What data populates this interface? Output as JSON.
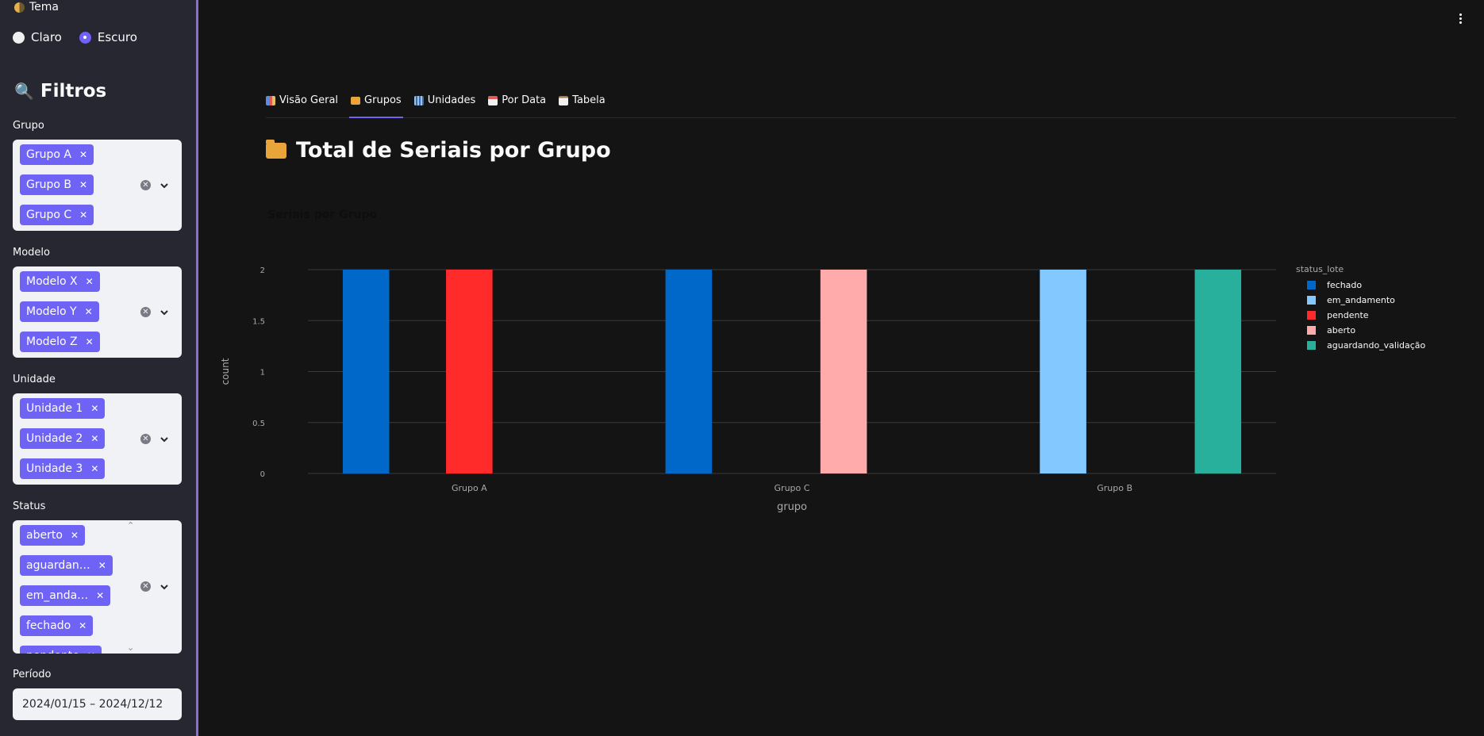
{
  "sidebar": {
    "theme_label": "Tema",
    "theme_options": [
      "Claro",
      "Escuro"
    ],
    "theme_selected": "Escuro",
    "filters_title": "Filtros",
    "filters": [
      {
        "label": "Grupo",
        "chips": [
          "Grupo A",
          "Grupo B",
          "Grupo C"
        ]
      },
      {
        "label": "Modelo",
        "chips": [
          "Modelo X",
          "Modelo Y",
          "Modelo Z"
        ]
      },
      {
        "label": "Unidade",
        "chips": [
          "Unidade 1",
          "Unidade 2",
          "Unidade 3"
        ]
      },
      {
        "label": "Status",
        "chips": [
          "aberto",
          "aguardan…",
          "em_anda…",
          "fechado",
          "pendente"
        ]
      }
    ],
    "period_label": "Período",
    "period_value": "2024/01/15 – 2024/12/12"
  },
  "main": {
    "tabs": [
      {
        "label": "Visão Geral",
        "icon": "bar-chart-icon"
      },
      {
        "label": "Grupos",
        "icon": "folder-icon"
      },
      {
        "label": "Unidades",
        "icon": "building-icon"
      },
      {
        "label": "Por Data",
        "icon": "calendar-icon"
      },
      {
        "label": "Tabela",
        "icon": "clipboard-icon"
      }
    ],
    "active_tab": "Grupos",
    "page_title": "Total de Seriais por Grupo",
    "chart_title": "Seriais por Grupo"
  },
  "colors": {
    "accent": "#6f63f5",
    "fechado": "#0068c9",
    "em_andamento": "#83c9ff",
    "pendente": "#ff2b2b",
    "aberto": "#ffabab",
    "aguardando_validacao": "#29b09d"
  },
  "chart_data": {
    "type": "bar",
    "categories": [
      "Grupo A",
      "Grupo C",
      "Grupo B"
    ],
    "xlabel": "grupo",
    "ylabel": "count",
    "ylim": [
      0,
      2
    ],
    "yticks": [
      0,
      0.5,
      1,
      1.5,
      2
    ],
    "ytick_labels": [
      "0",
      "0.5",
      "1",
      "1.5",
      "2"
    ],
    "legend_title": "status_lote",
    "legend_position": "right",
    "grid": true,
    "series": [
      {
        "name": "fechado",
        "color": "#0068c9",
        "values": [
          2,
          2,
          0
        ]
      },
      {
        "name": "em_andamento",
        "color": "#83c9ff",
        "values": [
          0,
          0,
          2
        ]
      },
      {
        "name": "pendente",
        "color": "#ff2b2b",
        "values": [
          2,
          0,
          0
        ]
      },
      {
        "name": "aberto",
        "color": "#ffabab",
        "values": [
          0,
          2,
          0
        ]
      },
      {
        "name": "aguardando_validação",
        "color": "#29b09d",
        "values": [
          0,
          0,
          2
        ]
      }
    ]
  }
}
